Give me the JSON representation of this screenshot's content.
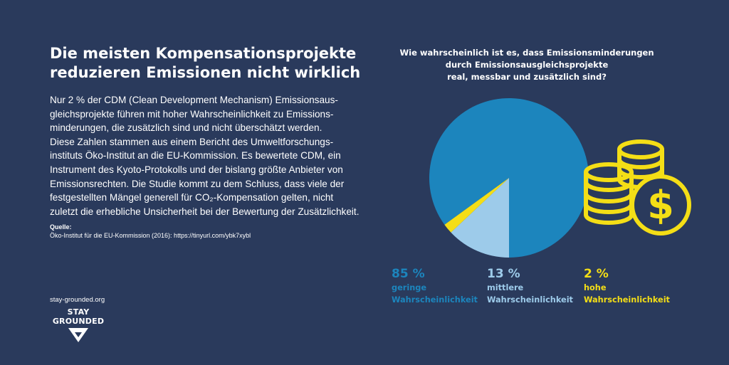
{
  "headline": {
    "lines": [
      "Die meisten Kompensationsprojekte",
      "reduzieren Emissionen nicht wirklich"
    ]
  },
  "body": {
    "lines": [
      "Nur 2 % der CDM (Clean Development Mechanism) Emissionsaus-",
      "gleichsprojekte führen mit hoher Wahrscheinlichkeit zu Emissions-",
      "minderungen, die zusätzlich sind und nicht überschätzt werden.",
      "Diese Zahlen stammen aus einem Bericht des Umweltforschungs-",
      "instituts Öko-Institut an die EU-Kommission. Es bewertete CDM, ein",
      "Instrument des Kyoto-Protokolls und der bislang größte Anbieter von",
      "Emissionsrechten. Die Studie kommt zu dem Schluss, dass viele der",
      "festgestellten Mängel generell für CO₂-Kompensation gelten, nicht",
      "zuletzt die erhebliche Unsicherheit bei der Bewertung der Zusätzlichkeit."
    ]
  },
  "source": {
    "label": "Quelle:",
    "text": "Öko-Institut für die EU-Kommission (2016): https://tinyurl.com/ybk7xybl"
  },
  "footer": {
    "url": "stay-grounded.org",
    "logo_lines": [
      "STAY",
      "GROUNDED"
    ],
    "logo_icon": "down-chevron-icon"
  },
  "decoration": {
    "icon": "coins-dollar-icon"
  },
  "colors": {
    "background": "#2a3a5c",
    "geringe": "#1c85bd",
    "mittlere": "#9dcbea",
    "hohe": "#f4de16",
    "text": "#ffffff"
  },
  "chart_data": {
    "type": "pie",
    "title_lines": [
      "Wie wahrscheinlich ist es, dass Emissionsminderungen",
      "durch Emissionsausgleichsprojekte",
      "real, messbar und zusätzlich sind?"
    ],
    "slices": [
      {
        "value": 85,
        "value_label": "85 %",
        "label_lines": [
          "geringe",
          "Wahrscheinlichkeit"
        ],
        "color": "#1c85bd"
      },
      {
        "value": 13,
        "value_label": "13 %",
        "label_lines": [
          "mittlere",
          "Wahrscheinlichkeit"
        ],
        "color": "#9dcbea"
      },
      {
        "value": 2,
        "value_label": "2 %",
        "label_lines": [
          "hohe",
          "Wahrscheinlichkeit"
        ],
        "color": "#f4de16"
      }
    ],
    "legend_position": "bottom"
  }
}
